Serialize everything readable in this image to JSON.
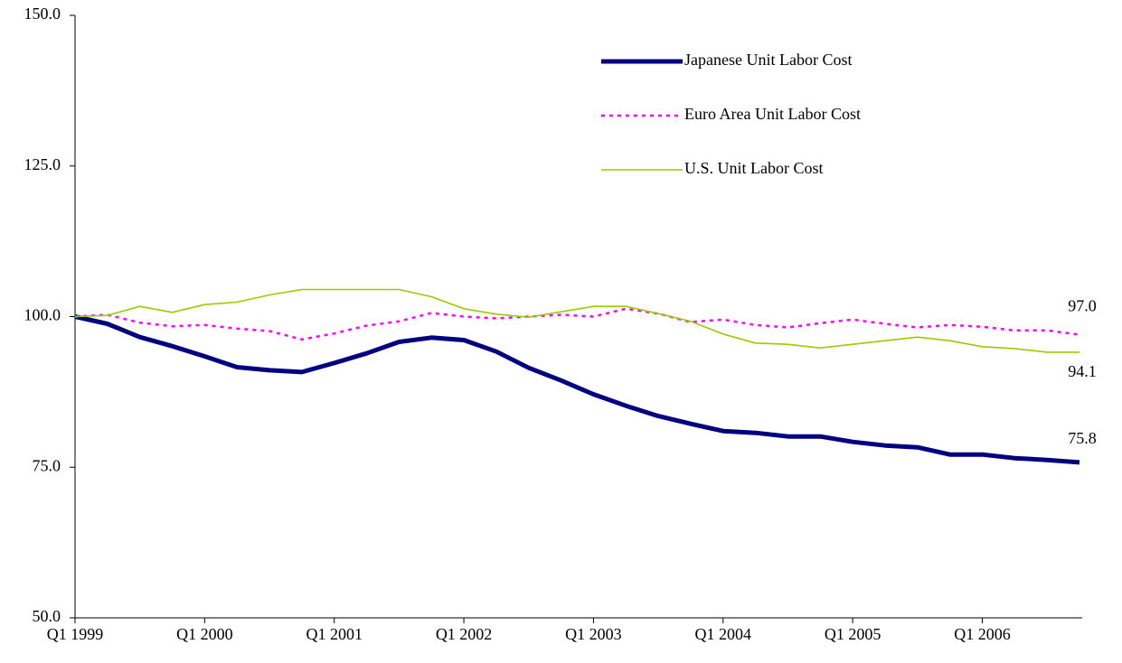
{
  "chart_data": {
    "type": "line",
    "categories": [
      "Q1 1999",
      null,
      null,
      null,
      "Q1 2000",
      null,
      null,
      null,
      "Q1 2001",
      null,
      null,
      null,
      "Q1 2002",
      null,
      null,
      null,
      "Q1 2003",
      null,
      null,
      null,
      "Q1 2004",
      null,
      null,
      null,
      "Q1 2005",
      null,
      null,
      null,
      "Q1 2006",
      null,
      null,
      null
    ],
    "series": [
      {
        "name": "Japanese Unit Labor Cost",
        "color": "#000080",
        "width": 5,
        "dash": "solid",
        "values": [
          100.0,
          98.8,
          96.6,
          95.1,
          93.4,
          91.6,
          91.1,
          90.8,
          92.3,
          93.9,
          95.8,
          96.5,
          96.1,
          94.2,
          91.5,
          89.4,
          87.1,
          85.2,
          83.5,
          82.2,
          81.0,
          80.7,
          80.1,
          80.1,
          79.2,
          78.6,
          78.3,
          77.1,
          77.1,
          76.5,
          76.2,
          75.8
        ],
        "value_labels": [
          null,
          null,
          null,
          null,
          null,
          null,
          null,
          null,
          null,
          null,
          null,
          null,
          null,
          null,
          null,
          null,
          null,
          null,
          null,
          null,
          null,
          null,
          null,
          null,
          null,
          null,
          null,
          null,
          null,
          null,
          null,
          "75.8"
        ]
      },
      {
        "name": "Euro Area Unit Labor Cost",
        "color": "#ff00ff",
        "width": 2.5,
        "dash": "dotted",
        "values": [
          100.0,
          100.3,
          99.0,
          98.4,
          98.6,
          98.0,
          97.6,
          96.2,
          97.2,
          98.5,
          99.2,
          100.6,
          100.0,
          99.7,
          100.0,
          100.3,
          100.0,
          101.3,
          100.5,
          99.1,
          99.5,
          98.6,
          98.2,
          98.9,
          99.5,
          98.8,
          98.2,
          98.6,
          98.3,
          97.7,
          97.7,
          97.0
        ],
        "value_labels": [
          null,
          null,
          null,
          null,
          null,
          null,
          null,
          null,
          null,
          null,
          null,
          null,
          null,
          null,
          null,
          null,
          null,
          null,
          null,
          null,
          null,
          null,
          null,
          null,
          null,
          null,
          null,
          null,
          null,
          null,
          null,
          "97.0"
        ]
      },
      {
        "name": "U.S. Unit Labor Cost",
        "color": "#99cc00",
        "width": 1.6,
        "dash": "solid",
        "values": [
          100.0,
          100.2,
          101.7,
          100.7,
          102.0,
          102.4,
          103.6,
          104.5,
          104.5,
          104.5,
          104.5,
          103.3,
          101.3,
          100.4,
          99.9,
          100.8,
          101.7,
          101.7,
          100.5,
          99.2,
          97.1,
          95.6,
          95.4,
          94.8,
          95.4,
          96.0,
          96.6,
          96.0,
          95.0,
          94.7,
          94.1,
          94.1
        ],
        "value_labels": [
          null,
          null,
          null,
          null,
          null,
          null,
          null,
          null,
          null,
          null,
          null,
          null,
          null,
          null,
          null,
          null,
          null,
          null,
          null,
          null,
          null,
          null,
          null,
          null,
          null,
          null,
          null,
          null,
          null,
          null,
          null,
          "94.1"
        ]
      }
    ],
    "ylim": [
      50,
      150
    ],
    "yticks": [
      {
        "value": 50,
        "label": "50.0"
      },
      {
        "value": 75,
        "label": "75.0"
      },
      {
        "value": 100,
        "label": "100.0"
      },
      {
        "value": 125,
        "label": "125.0"
      },
      {
        "value": 150,
        "label": "150.0"
      }
    ],
    "grid": false,
    "legend": "upper right"
  }
}
